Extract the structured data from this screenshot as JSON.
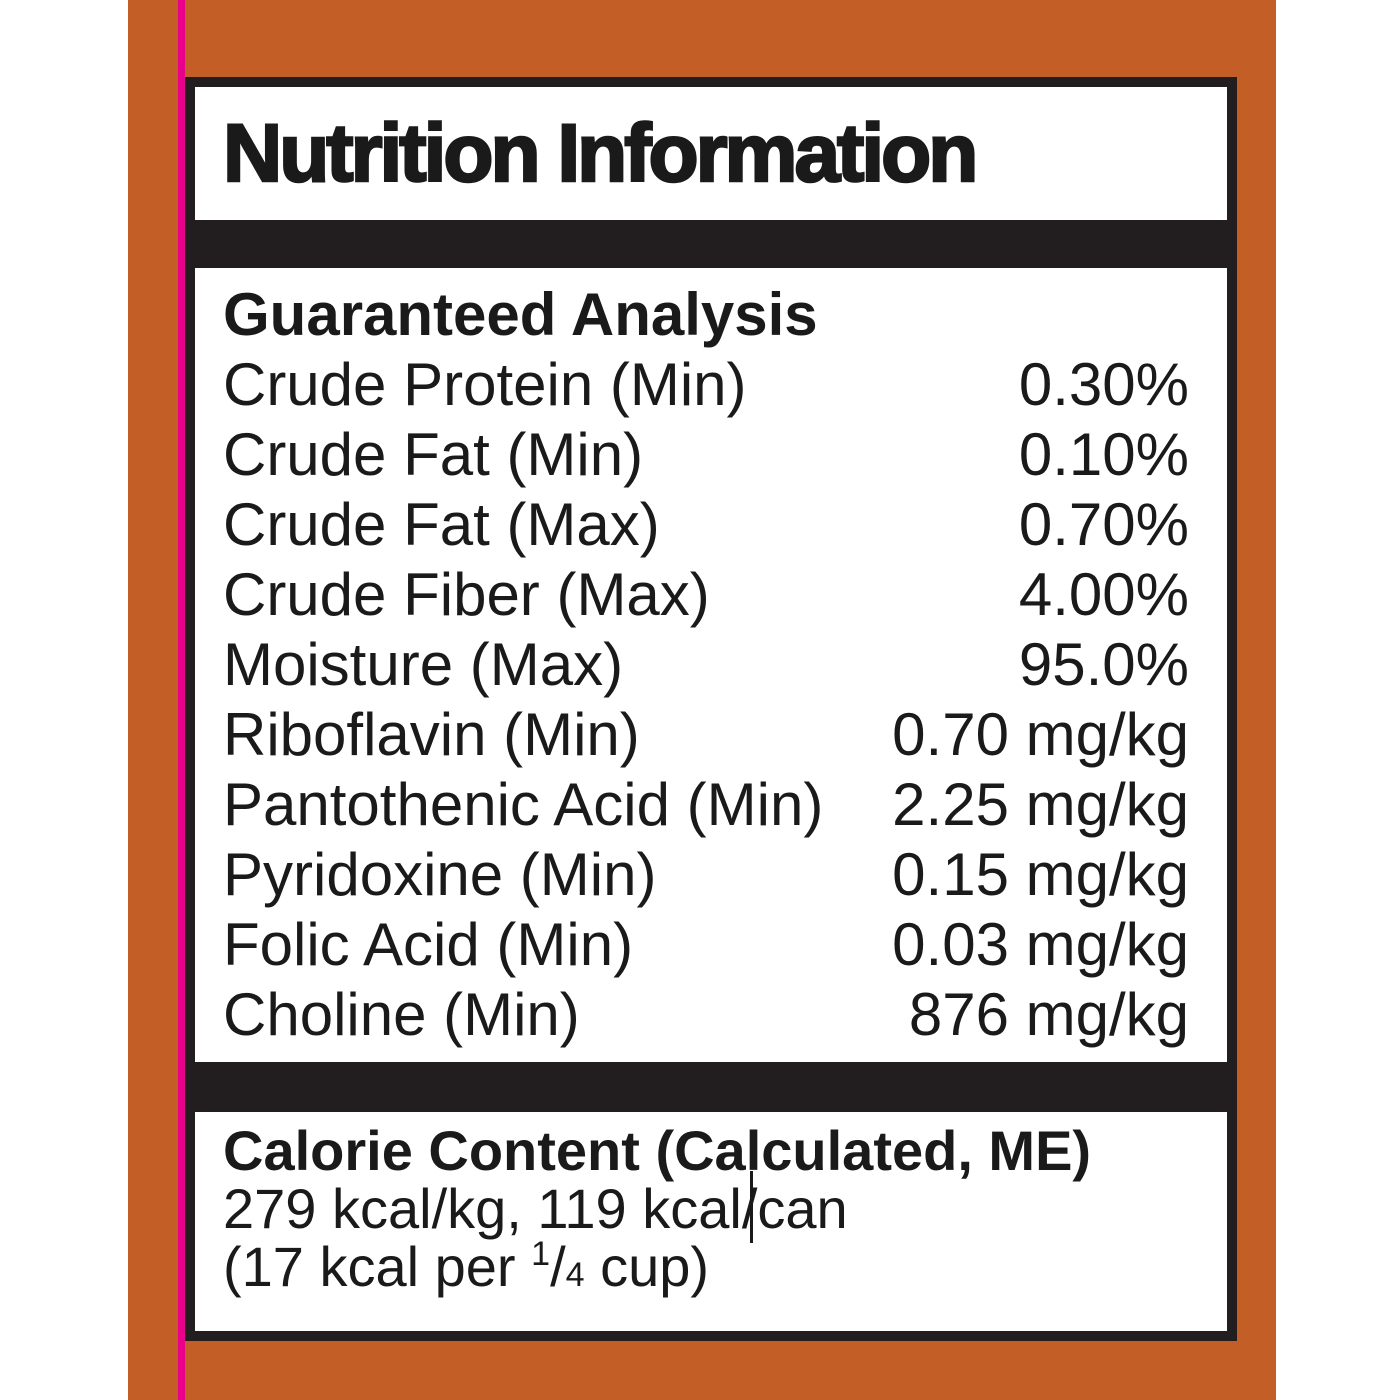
{
  "label": {
    "title": "Nutrition Information",
    "colors": {
      "label_background": "#c45e27",
      "registration_line": "#e8008b",
      "divider_bar": "#221e1f",
      "panel_border": "#221e1f",
      "panel_background": "#ffffff",
      "text": "#1a1a1a"
    },
    "guaranteed_analysis": {
      "heading": "Guaranteed Analysis",
      "rows": [
        {
          "name": "Crude Protein (Min)",
          "value": "0.30%"
        },
        {
          "name": "Crude Fat (Min)",
          "value": "0.10%"
        },
        {
          "name": "Crude Fat (Max)",
          "value": "0.70%"
        },
        {
          "name": "Crude Fiber (Max)",
          "value": "4.00%"
        },
        {
          "name": "Moisture (Max)",
          "value": "95.0%"
        },
        {
          "name": "Riboflavin (Min)",
          "value": "0.70 mg/kg"
        },
        {
          "name": "Pantothenic Acid (Min)",
          "value": "2.25 mg/kg"
        },
        {
          "name": "Pyridoxine (Min)",
          "value": "0.15 mg/kg"
        },
        {
          "name": "Folic Acid (Min)",
          "value": "0.03 mg/kg"
        },
        {
          "name": "Choline (Min)",
          "value": "876 mg/kg"
        }
      ]
    },
    "calorie_content": {
      "heading": "Calorie Content (Calculated, ME)",
      "kcal_line": "279 kcal/kg, 119 kcal/can",
      "cup_line_prefix": "(17 kcal per ",
      "fraction_numerator": "1",
      "fraction_slash": "/",
      "fraction_denominator": "4",
      "cup_line_suffix": " cup)"
    }
  }
}
